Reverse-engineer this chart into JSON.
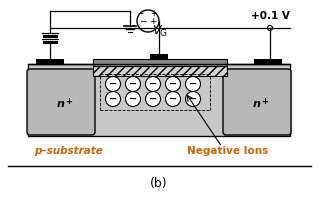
{
  "bg_color": "#ffffff",
  "substrate_color": "#c8c8c8",
  "n_region_color": "#b8b8b8",
  "gate_oxide_hatch_color": "#d4d4d4",
  "gate_metal_color": "#888888",
  "title_label": "(b)",
  "p_substrate_label": "p–substrate",
  "negative_ions_label": "Negative Ions",
  "voltage_label": "+0.1 V",
  "n_plus_label": "n",
  "label_color_orange": "#cc6600",
  "text_color": "#000000",
  "fig_w": 3.19,
  "fig_h": 2.04,
  "dpi": 100
}
